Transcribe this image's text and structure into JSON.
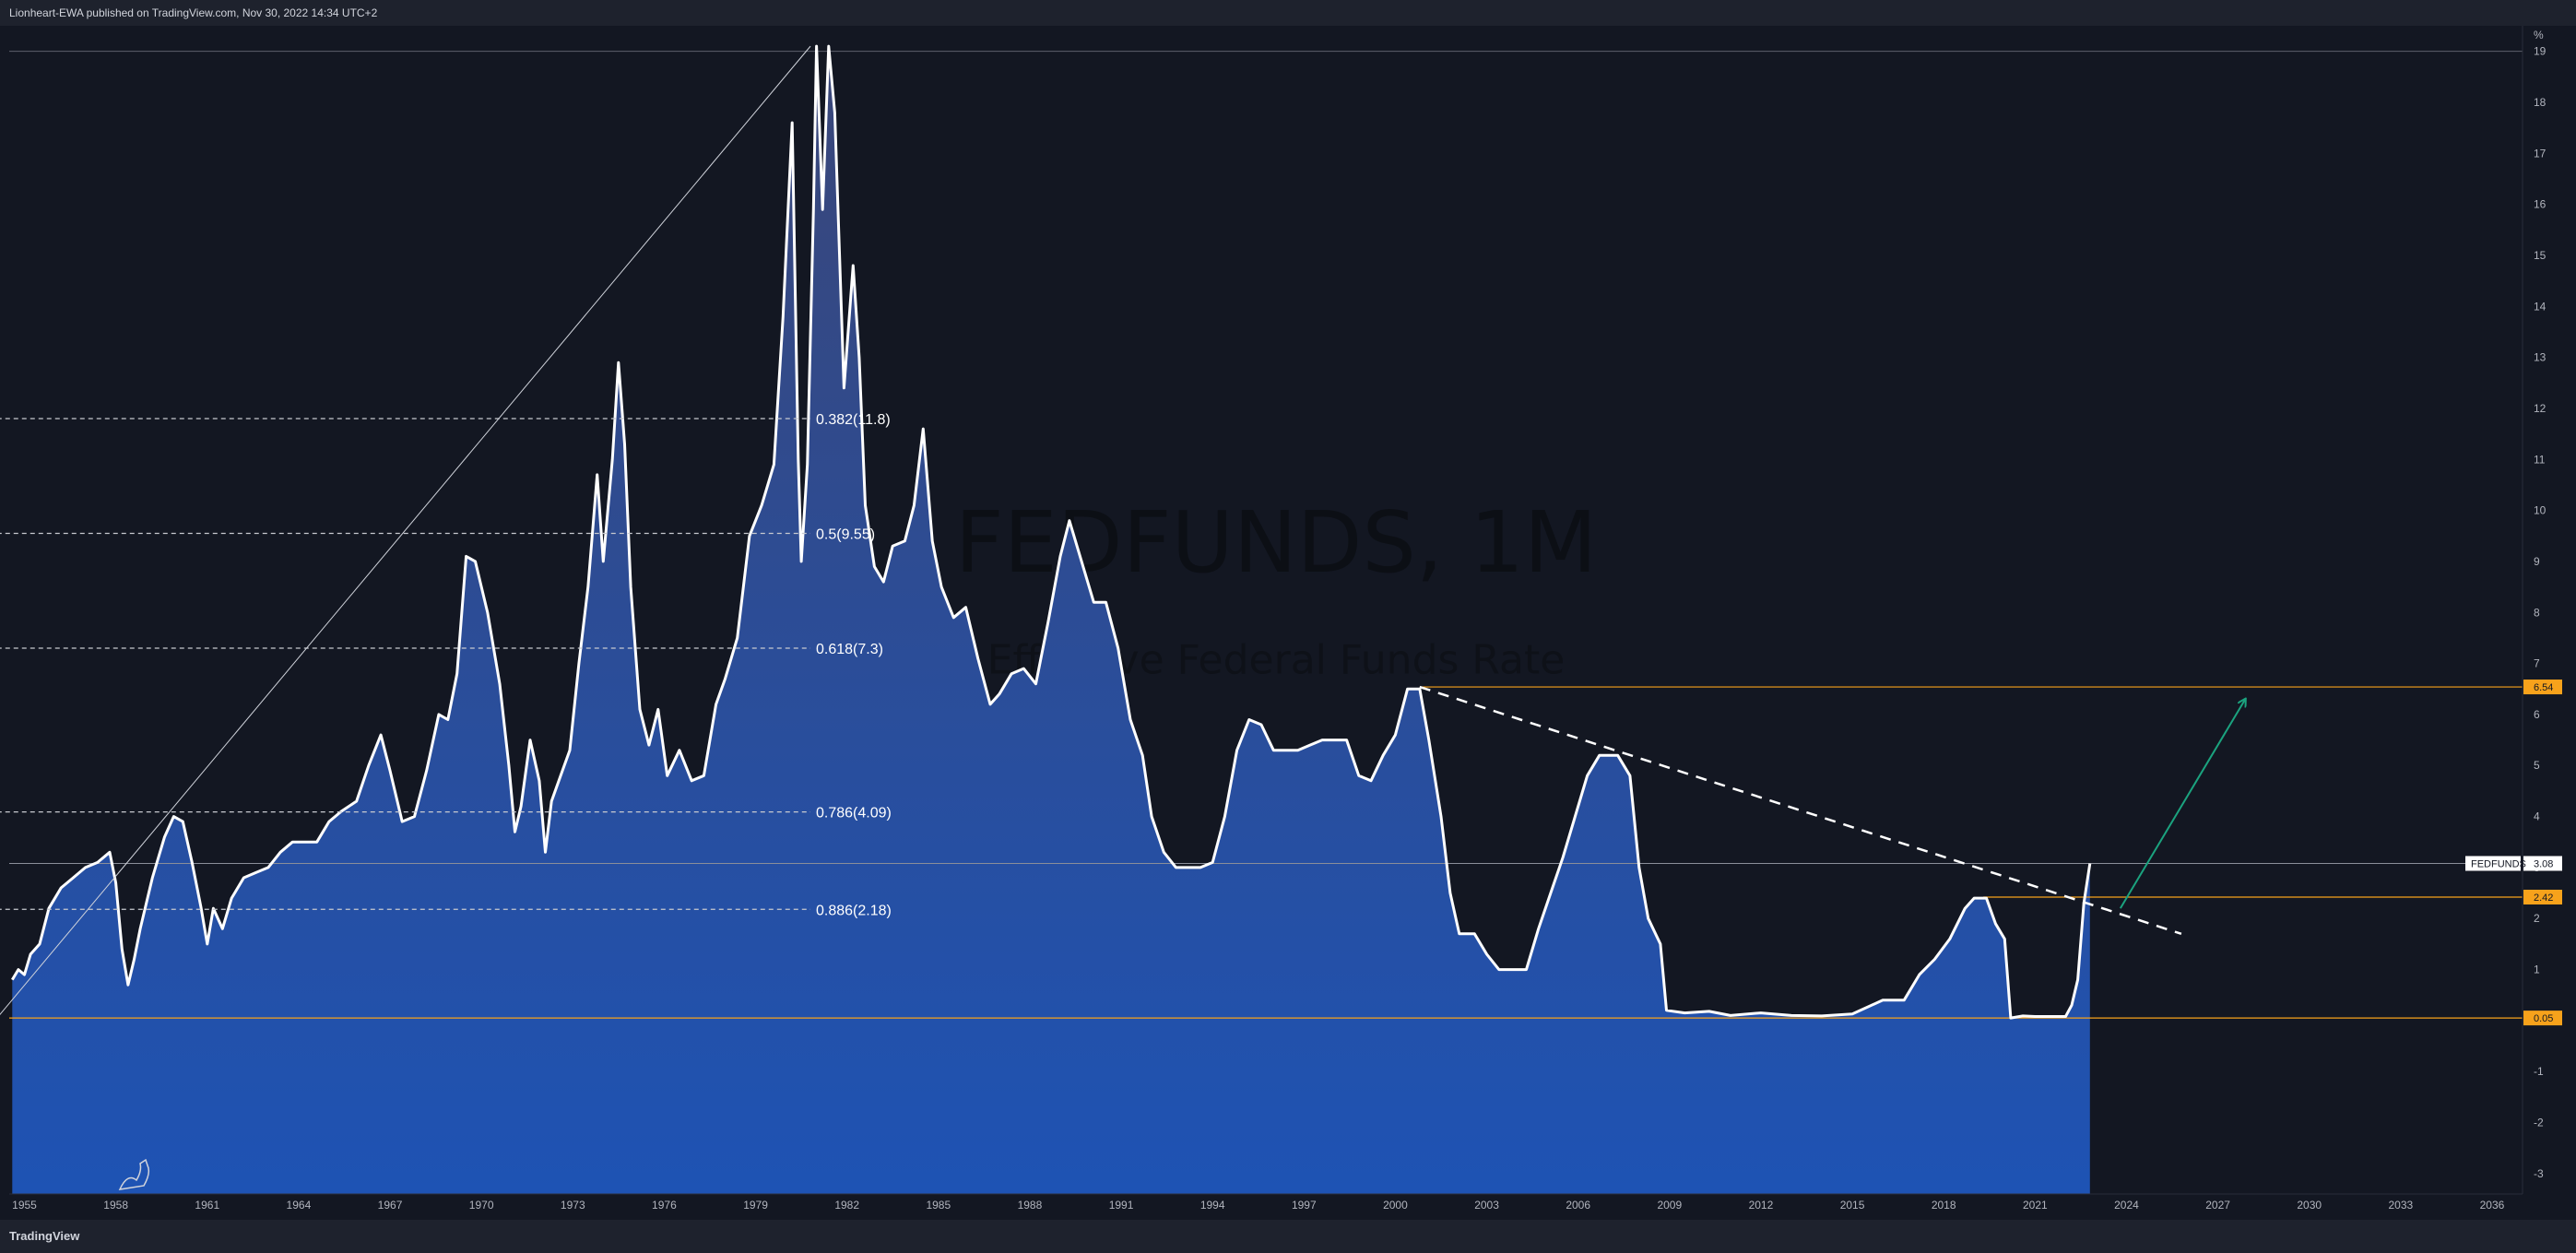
{
  "header": {
    "publisher_line": "Lionheart-EWA published on TradingView.com, Nov 30, 2022 14:34 UTC+2"
  },
  "footer": {
    "brand": "TradingView"
  },
  "colors": {
    "background": "#131722",
    "line": "#ffffff",
    "area_top": "#3a4678",
    "area_bottom": "#1e53b4",
    "level_line": "#f7a21b",
    "arrow": "#1ba37f"
  },
  "chart_data": {
    "type": "area",
    "watermark_symbol": "FEDFUNDS, 1M",
    "watermark_name": "Effective Federal Funds Rate",
    "y_unit_label": "%",
    "ylim": [
      -3.4,
      19.5
    ],
    "xlim": [
      1954.5,
      2037.0
    ],
    "y_ticks": [
      "-3",
      "-2",
      "-1",
      "0",
      "1",
      "2",
      "3",
      "4",
      "5",
      "6",
      "7",
      "8",
      "9",
      "10",
      "11",
      "12",
      "13",
      "14",
      "15",
      "16",
      "17",
      "18",
      "19"
    ],
    "x_ticks": [
      "1955",
      "1958",
      "1961",
      "1964",
      "1967",
      "1970",
      "1973",
      "1976",
      "1979",
      "1982",
      "1985",
      "1988",
      "1991",
      "1994",
      "1997",
      "2000",
      "2003",
      "2006",
      "2009",
      "2012",
      "2015",
      "2018",
      "2021",
      "2024",
      "2027",
      "2030",
      "2033",
      "2036"
    ],
    "series": [
      {
        "symbol_tag": "FEDFUNDS",
        "last_value": "3.08",
        "points": [
          [
            1954.6,
            0.8
          ],
          [
            1954.8,
            1.0
          ],
          [
            1955.0,
            0.9
          ],
          [
            1955.2,
            1.3
          ],
          [
            1955.5,
            1.5
          ],
          [
            1955.8,
            2.2
          ],
          [
            1956.2,
            2.6
          ],
          [
            1956.6,
            2.8
          ],
          [
            1957.0,
            3.0
          ],
          [
            1957.4,
            3.1
          ],
          [
            1957.8,
            3.3
          ],
          [
            1958.0,
            2.7
          ],
          [
            1958.2,
            1.4
          ],
          [
            1958.4,
            0.7
          ],
          [
            1958.6,
            1.2
          ],
          [
            1958.8,
            1.8
          ],
          [
            1959.2,
            2.8
          ],
          [
            1959.6,
            3.6
          ],
          [
            1959.9,
            4.0
          ],
          [
            1960.2,
            3.9
          ],
          [
            1960.5,
            3.1
          ],
          [
            1960.8,
            2.2
          ],
          [
            1961.0,
            1.5
          ],
          [
            1961.2,
            2.2
          ],
          [
            1961.5,
            1.8
          ],
          [
            1961.8,
            2.4
          ],
          [
            1962.2,
            2.8
          ],
          [
            1962.6,
            2.9
          ],
          [
            1963.0,
            3.0
          ],
          [
            1963.4,
            3.3
          ],
          [
            1963.8,
            3.5
          ],
          [
            1964.2,
            3.5
          ],
          [
            1964.6,
            3.5
          ],
          [
            1965.0,
            3.9
          ],
          [
            1965.4,
            4.1
          ],
          [
            1965.9,
            4.3
          ],
          [
            1966.3,
            5.0
          ],
          [
            1966.7,
            5.6
          ],
          [
            1967.0,
            4.9
          ],
          [
            1967.4,
            3.9
          ],
          [
            1967.8,
            4.0
          ],
          [
            1968.2,
            4.9
          ],
          [
            1968.6,
            6.0
          ],
          [
            1968.9,
            5.9
          ],
          [
            1969.2,
            6.8
          ],
          [
            1969.5,
            9.1
          ],
          [
            1969.8,
            9.0
          ],
          [
            1970.2,
            8.0
          ],
          [
            1970.6,
            6.6
          ],
          [
            1970.9,
            5.0
          ],
          [
            1971.1,
            3.7
          ],
          [
            1971.3,
            4.2
          ],
          [
            1971.6,
            5.5
          ],
          [
            1971.9,
            4.7
          ],
          [
            1972.1,
            3.3
          ],
          [
            1972.3,
            4.3
          ],
          [
            1972.6,
            4.8
          ],
          [
            1972.9,
            5.3
          ],
          [
            1973.2,
            7.0
          ],
          [
            1973.5,
            8.5
          ],
          [
            1973.8,
            10.7
          ],
          [
            1974.0,
            9.0
          ],
          [
            1974.3,
            11.0
          ],
          [
            1974.5,
            12.9
          ],
          [
            1974.7,
            11.3
          ],
          [
            1974.9,
            8.5
          ],
          [
            1975.2,
            6.1
          ],
          [
            1975.5,
            5.4
          ],
          [
            1975.8,
            6.1
          ],
          [
            1976.1,
            4.8
          ],
          [
            1976.5,
            5.3
          ],
          [
            1976.9,
            4.7
          ],
          [
            1977.3,
            4.8
          ],
          [
            1977.7,
            6.2
          ],
          [
            1978.0,
            6.7
          ],
          [
            1978.4,
            7.5
          ],
          [
            1978.8,
            9.5
          ],
          [
            1979.2,
            10.1
          ],
          [
            1979.6,
            10.9
          ],
          [
            1979.9,
            13.8
          ],
          [
            1980.2,
            17.6
          ],
          [
            1980.4,
            11.0
          ],
          [
            1980.5,
            9.0
          ],
          [
            1980.7,
            10.9
          ],
          [
            1980.9,
            15.9
          ],
          [
            1981.0,
            19.1
          ],
          [
            1981.2,
            15.9
          ],
          [
            1981.4,
            19.1
          ],
          [
            1981.6,
            17.8
          ],
          [
            1981.9,
            12.4
          ],
          [
            1982.2,
            14.8
          ],
          [
            1982.4,
            13.0
          ],
          [
            1982.6,
            10.1
          ],
          [
            1982.9,
            8.9
          ],
          [
            1983.2,
            8.6
          ],
          [
            1983.5,
            9.3
          ],
          [
            1983.9,
            9.4
          ],
          [
            1984.2,
            10.1
          ],
          [
            1984.5,
            11.6
          ],
          [
            1984.8,
            9.4
          ],
          [
            1985.1,
            8.5
          ],
          [
            1985.5,
            7.9
          ],
          [
            1985.9,
            8.1
          ],
          [
            1986.3,
            7.1
          ],
          [
            1986.7,
            6.2
          ],
          [
            1987.0,
            6.4
          ],
          [
            1987.4,
            6.8
          ],
          [
            1987.8,
            6.9
          ],
          [
            1988.2,
            6.6
          ],
          [
            1988.6,
            7.8
          ],
          [
            1989.0,
            9.1
          ],
          [
            1989.3,
            9.8
          ],
          [
            1989.7,
            9.0
          ],
          [
            1990.1,
            8.2
          ],
          [
            1990.5,
            8.2
          ],
          [
            1990.9,
            7.3
          ],
          [
            1991.3,
            5.9
          ],
          [
            1991.7,
            5.2
          ],
          [
            1992.0,
            4.0
          ],
          [
            1992.4,
            3.3
          ],
          [
            1992.8,
            3.0
          ],
          [
            1993.2,
            3.0
          ],
          [
            1993.6,
            3.0
          ],
          [
            1994.0,
            3.1
          ],
          [
            1994.4,
            4.0
          ],
          [
            1994.8,
            5.3
          ],
          [
            1995.2,
            5.9
          ],
          [
            1995.6,
            5.8
          ],
          [
            1996.0,
            5.3
          ],
          [
            1996.4,
            5.3
          ],
          [
            1996.8,
            5.3
          ],
          [
            1997.2,
            5.4
          ],
          [
            1997.6,
            5.5
          ],
          [
            1998.0,
            5.5
          ],
          [
            1998.4,
            5.5
          ],
          [
            1998.8,
            4.8
          ],
          [
            1999.2,
            4.7
          ],
          [
            1999.6,
            5.2
          ],
          [
            2000.0,
            5.6
          ],
          [
            2000.4,
            6.5
          ],
          [
            2000.8,
            6.5
          ],
          [
            2001.1,
            5.5
          ],
          [
            2001.5,
            4.0
          ],
          [
            2001.8,
            2.5
          ],
          [
            2002.1,
            1.7
          ],
          [
            2002.6,
            1.7
          ],
          [
            2003.0,
            1.3
          ],
          [
            2003.4,
            1.0
          ],
          [
            2003.8,
            1.0
          ],
          [
            2004.3,
            1.0
          ],
          [
            2004.7,
            1.8
          ],
          [
            2005.1,
            2.5
          ],
          [
            2005.5,
            3.2
          ],
          [
            2005.9,
            4.0
          ],
          [
            2006.3,
            4.8
          ],
          [
            2006.7,
            5.2
          ],
          [
            2007.3,
            5.2
          ],
          [
            2007.7,
            4.8
          ],
          [
            2008.0,
            3.0
          ],
          [
            2008.3,
            2.0
          ],
          [
            2008.7,
            1.5
          ],
          [
            2008.9,
            0.2
          ],
          [
            2009.5,
            0.15
          ],
          [
            2010.3,
            0.18
          ],
          [
            2011.0,
            0.1
          ],
          [
            2012.0,
            0.15
          ],
          [
            2013.0,
            0.1
          ],
          [
            2014.0,
            0.09
          ],
          [
            2015.0,
            0.13
          ],
          [
            2016.0,
            0.4
          ],
          [
            2016.7,
            0.4
          ],
          [
            2017.2,
            0.9
          ],
          [
            2017.7,
            1.2
          ],
          [
            2018.2,
            1.6
          ],
          [
            2018.7,
            2.2
          ],
          [
            2019.0,
            2.4
          ],
          [
            2019.4,
            2.4
          ],
          [
            2019.7,
            1.9
          ],
          [
            2020.0,
            1.6
          ],
          [
            2020.2,
            0.05
          ],
          [
            2020.6,
            0.09
          ],
          [
            2021.0,
            0.08
          ],
          [
            2021.6,
            0.08
          ],
          [
            2022.0,
            0.08
          ],
          [
            2022.2,
            0.3
          ],
          [
            2022.4,
            0.8
          ],
          [
            2022.6,
            2.3
          ],
          [
            2022.8,
            3.08
          ]
        ]
      }
    ],
    "fib_levels": [
      {
        "label": "0.382(11.8)",
        "value": 11.8
      },
      {
        "label": "0.5(9.55)",
        "value": 9.55
      },
      {
        "label": "0.618(7.3)",
        "value": 7.3
      },
      {
        "label": "0.786(4.09)",
        "value": 4.09
      },
      {
        "label": "0.886(2.18)",
        "value": 2.18
      }
    ],
    "horizontal_levels": [
      {
        "value": 6.54,
        "label": "6.54"
      },
      {
        "value": 2.42,
        "label": "2.42"
      },
      {
        "value": 0.05,
        "label": "0.05"
      }
    ],
    "current_price_line": {
      "value": 3.08
    },
    "trend_line": {
      "from": [
        1954.1,
        0.05
      ],
      "to": [
        1980.8,
        19.1
      ]
    },
    "resistance_dashed": {
      "from": [
        2000.8,
        6.54
      ],
      "to": [
        2025.8,
        1.7
      ]
    },
    "projection_arrow": {
      "from": [
        2023.8,
        2.2
      ],
      "to": [
        2027.9,
        6.3
      ]
    }
  }
}
